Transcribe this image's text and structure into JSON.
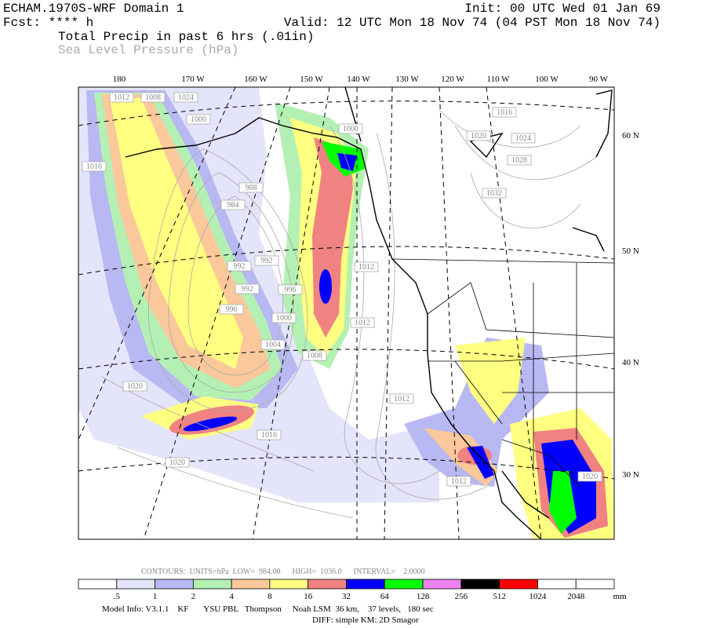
{
  "header": {
    "title": "ECHAM.1970S-WRF Domain 1",
    "init": "Init: 00 UTC Wed 01 Jan 69",
    "forecast": "Fcst: **** h",
    "valid": "Valid: 12 UTC Mon 18 Nov 74 (04 PST Mon 18 Nov 74)",
    "field_1": "Total Precip in past 6 hrs (.01in)",
    "field_2": "Sea Level Pressure (hPa)"
  },
  "map": {
    "longitude_labels": [
      "180",
      "170 W",
      "160 W",
      "150 W",
      "140 W",
      "130 W",
      "120 W",
      "110 W",
      "100 W",
      "90 W"
    ],
    "latitude_labels": [
      "60 N",
      "50 N",
      "40 N",
      "30 N"
    ],
    "contour_labels": [
      "1012",
      "1008",
      "1024",
      "1000",
      "1016",
      "988",
      "984",
      "992",
      "992",
      "992",
      "996",
      "996",
      "1000",
      "1004",
      "1008",
      "1012",
      "1012",
      "1012",
      "1016",
      "1020",
      "1020",
      "1000",
      "1016",
      "1020",
      "1024",
      "1028",
      "1032",
      "1012",
      "1020"
    ]
  },
  "contour_info": "CONTOURS:  UNITS=hPa  LOW=  984.00      HIGH=  1036.0      INTERVAL=    2.0000",
  "colorbar": {
    "labels": [
      ".5",
      "1",
      "2",
      "4",
      "8",
      "16",
      "32",
      "64",
      "128",
      "256",
      "512",
      "1024",
      "2048"
    ],
    "unit": "mm",
    "colors": [
      "#ffffff",
      "#e4e4fa",
      "#b8b8f2",
      "#b4f0b4",
      "#fac89a",
      "#ffff82",
      "#f08282",
      "#0000ff",
      "#00ff00",
      "#ee82ee",
      "#000000",
      "#ff0000",
      "#ffffff",
      "#ffffff"
    ]
  },
  "footer": {
    "line_1": "Model Info: V3.1.1    KF       YSU PBL   Thompson     Noah LSM  36 km,    37 levels,   180 sec",
    "line_2": "DIFF: simple KM: 2D Smagor"
  }
}
